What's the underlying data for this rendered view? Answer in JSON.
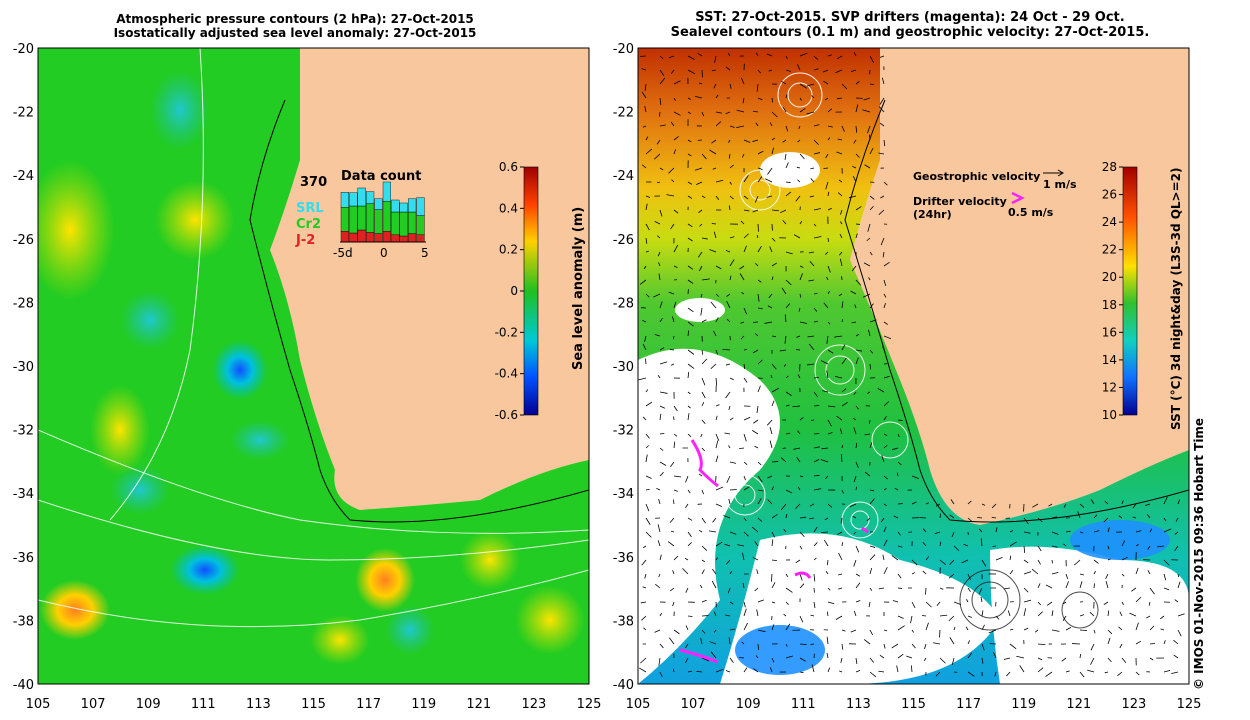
{
  "left_panel": {
    "title_line1": "Atmospheric pressure contours (2 hPa): 27-Oct-2015",
    "title_line2": "Isostatically adjusted sea level anomaly: 27-Oct-2015",
    "colorbar": {
      "label": "Sea level anomaly (m)",
      "ticks": [
        "0.6",
        "0.4",
        "0.2",
        "0",
        "-0.2",
        "-0.4",
        "-0.6"
      ]
    },
    "data_count": {
      "title": "Data count",
      "max": "370",
      "legend": [
        {
          "label": "SRL",
          "color": "#33ddee"
        },
        {
          "label": "Cr2",
          "color": "#22cc22"
        },
        {
          "label": "J-2",
          "color": "#dd2222"
        }
      ],
      "x_ticks": [
        "-5d",
        "0",
        "5"
      ],
      "bars": [
        {
          "srl": 0.25,
          "cr2": 0.4,
          "j2": 0.18
        },
        {
          "srl": 0.22,
          "cr2": 0.45,
          "j2": 0.15
        },
        {
          "srl": 0.3,
          "cr2": 0.4,
          "j2": 0.2
        },
        {
          "srl": 0.2,
          "cr2": 0.48,
          "j2": 0.16
        },
        {
          "srl": 0.18,
          "cr2": 0.4,
          "j2": 0.14
        },
        {
          "srl": 0.32,
          "cr2": 0.5,
          "j2": 0.18
        },
        {
          "srl": 0.2,
          "cr2": 0.38,
          "j2": 0.12
        },
        {
          "srl": 0.15,
          "cr2": 0.4,
          "j2": 0.1
        },
        {
          "srl": 0.22,
          "cr2": 0.36,
          "j2": 0.14
        },
        {
          "srl": 0.3,
          "cr2": 0.32,
          "j2": 0.12
        }
      ]
    }
  },
  "right_panel": {
    "title_line1": "SST: 27-Oct-2015. SVP drifters (magenta): 24 Oct - 29 Oct.",
    "title_line2": "Sealevel contours (0.1 m) and geostrophic velocity: 27-Oct-2015.",
    "geostrophic_label": "Geostrophic velocity",
    "geostrophic_scale": "1 m/s",
    "drifter_label_line1": "Drifter velocity",
    "drifter_label_line2": "(24hr)",
    "drifter_scale": "0.5 m/s",
    "drifter_color": "#ff22ff",
    "colorbar": {
      "label": "SST (°C) 3d night&day (L3S-3d QL>=2)",
      "ticks": [
        "28",
        "26",
        "24",
        "22",
        "20",
        "18",
        "16",
        "14",
        "12",
        "10"
      ]
    }
  },
  "axes": {
    "x_ticks": [
      "105",
      "107",
      "109",
      "111",
      "113",
      "115",
      "117",
      "119",
      "121",
      "123",
      "125"
    ],
    "y_ticks": [
      "-20",
      "-22",
      "-24",
      "-26",
      "-28",
      "-30",
      "-32",
      "-34",
      "-36",
      "-38",
      "-40"
    ]
  },
  "colors": {
    "land": "#f9c79e",
    "sla_green": "#22cc22",
    "sst_orange": "#e07a10"
  },
  "credit": "© IMOS 01-Nov-2015 09:36 Hobart Time"
}
